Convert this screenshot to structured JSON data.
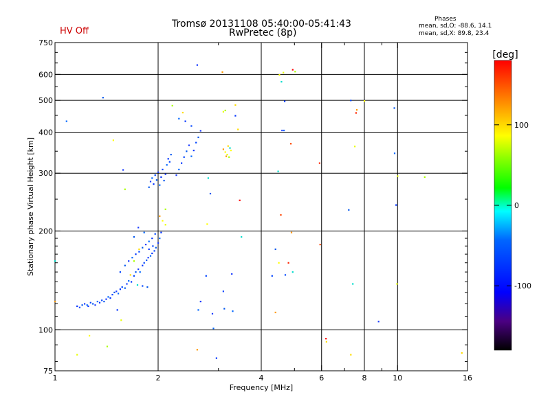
{
  "header": {
    "title_line1": "Tromsø 20131108 05:40:00-05:41:43",
    "title_line2": "RwPretec (8p)",
    "status": "HV Off",
    "status_color": "#cc0000",
    "phases_title": "Phases",
    "phases_line1": "mean, sd,O: -88.6, 14.1",
    "phases_line2": "mean, sd,X:  89.8, 23.4"
  },
  "chart_data": {
    "type": "scatter",
    "xlabel": "Frequency [MHz]",
    "ylabel": "Stationary phase Virtual Height [km]",
    "x_scale": "log",
    "y_scale": "log",
    "xlim": [
      1,
      16
    ],
    "ylim": [
      75,
      750
    ],
    "x_ticks": [
      1,
      2,
      4,
      6,
      8,
      10,
      16
    ],
    "x_tick_labels": [
      "1",
      "2",
      "4",
      "6",
      "8",
      "10",
      "16"
    ],
    "x_minor_ticks": [
      3,
      5,
      7,
      9
    ],
    "y_ticks": [
      75,
      100,
      200,
      300,
      400,
      500,
      600,
      750
    ],
    "y_tick_labels": [
      "75",
      "100",
      "200",
      "300",
      "400",
      "500",
      "600",
      "750"
    ],
    "y_minor_ticks": [
      80,
      90,
      110,
      120,
      130,
      140,
      150,
      160,
      170,
      180,
      190,
      250,
      350,
      450,
      550,
      650,
      700
    ],
    "grid": true,
    "colorbar": {
      "label": "[deg]",
      "range": [
        -180,
        180
      ],
      "ticks": [
        100,
        0,
        -100
      ],
      "tick_labels": [
        "100",
        "0",
        "-100"
      ]
    },
    "series": [
      {
        "points": [
          [
            1.16,
            118
          ],
          [
            1.18,
            117
          ],
          [
            1.2,
            119
          ],
          [
            1.22,
            120
          ],
          [
            1.24,
            119
          ],
          [
            1.25,
            118
          ],
          [
            1.27,
            121
          ],
          [
            1.29,
            120
          ],
          [
            1.31,
            119
          ],
          [
            1.33,
            122
          ],
          [
            1.35,
            121
          ],
          [
            1.37,
            123
          ],
          [
            1.39,
            122
          ],
          [
            1.41,
            124
          ],
          [
            1.43,
            126
          ],
          [
            1.45,
            125
          ],
          [
            1.47,
            128
          ],
          [
            1.49,
            130
          ],
          [
            1.51,
            131
          ],
          [
            1.53,
            129
          ],
          [
            1.55,
            133
          ],
          [
            1.57,
            135
          ],
          [
            1.6,
            134
          ],
          [
            1.62,
            138
          ],
          [
            1.64,
            141
          ],
          [
            1.67,
            140
          ],
          [
            1.7,
            146
          ],
          [
            1.72,
            150
          ],
          [
            1.75,
            153
          ],
          [
            1.77,
            150
          ],
          [
            1.8,
            157
          ],
          [
            1.82,
            160
          ],
          [
            1.85,
            163
          ],
          [
            1.87,
            166
          ],
          [
            1.9,
            168
          ],
          [
            1.92,
            171
          ],
          [
            1.95,
            174
          ],
          [
            1.97,
            178
          ],
          [
            2.0,
            184
          ],
          [
            2.02,
            190
          ],
          [
            2.04,
            198
          ],
          [
            1.55,
            150
          ],
          [
            1.6,
            157
          ],
          [
            1.64,
            162
          ],
          [
            1.68,
            166
          ],
          [
            1.72,
            170
          ],
          [
            1.76,
            173
          ],
          [
            1.8,
            178
          ],
          [
            1.84,
            182
          ],
          [
            1.88,
            186
          ],
          [
            1.92,
            190
          ],
          [
            1.96,
            196
          ],
          [
            1.7,
            192
          ],
          [
            1.75,
            205
          ],
          [
            1.82,
            198
          ],
          [
            1.88,
            176
          ],
          [
            1.93,
            180
          ],
          [
            1.88,
            272
          ],
          [
            1.9,
            283
          ],
          [
            1.92,
            290
          ],
          [
            1.94,
            278
          ],
          [
            1.96,
            296
          ],
          [
            1.98,
            286
          ],
          [
            2.0,
            302
          ],
          [
            2.02,
            276
          ],
          [
            2.04,
            292
          ],
          [
            2.06,
            308
          ],
          [
            2.08,
            285
          ],
          [
            2.1,
            298
          ],
          [
            2.12,
            318
          ],
          [
            2.14,
            332
          ],
          [
            2.16,
            325
          ],
          [
            2.18,
            342
          ],
          [
            2.26,
            296
          ],
          [
            2.3,
            308
          ],
          [
            2.34,
            322
          ],
          [
            2.38,
            336
          ],
          [
            2.42,
            350
          ],
          [
            2.46,
            365
          ],
          [
            2.5,
            338
          ],
          [
            2.54,
            352
          ],
          [
            2.58,
            372
          ],
          [
            2.62,
            386
          ],
          [
            2.66,
            404
          ],
          [
            2.3,
            440
          ],
          [
            2.4,
            432
          ],
          [
            2.5,
            418
          ],
          [
            1.38,
            510
          ],
          [
            1.58,
            307
          ],
          [
            1.08,
            432
          ],
          [
            1.52,
            115
          ],
          [
            1.8,
            136
          ],
          [
            1.86,
            135
          ],
          [
            2.6,
            641
          ],
          [
            2.62,
            115
          ],
          [
            2.66,
            122
          ],
          [
            2.76,
            146
          ],
          [
            2.84,
            260
          ],
          [
            2.88,
            112
          ],
          [
            2.9,
            101
          ],
          [
            2.96,
            82
          ],
          [
            3.1,
            131
          ],
          [
            3.12,
            116
          ],
          [
            3.28,
            148
          ],
          [
            3.3,
            114
          ],
          [
            3.36,
            449
          ],
          [
            4.3,
            146
          ],
          [
            4.4,
            176
          ],
          [
            4.6,
            405
          ],
          [
            4.66,
            405
          ],
          [
            4.68,
            497
          ],
          [
            4.7,
            147
          ],
          [
            7.2,
            232
          ],
          [
            8.8,
            106
          ],
          [
            9.8,
            345
          ],
          [
            9.9,
            240
          ],
          [
            7.3,
            500
          ],
          [
            9.78,
            474
          ]
        ]
      },
      {
        "points": [
          [
            1.48,
            378
          ],
          [
            1.56,
            107
          ],
          [
            1.6,
            268
          ],
          [
            1.66,
            147
          ],
          [
            1.74,
            137
          ],
          [
            2.02,
            222
          ],
          [
            2.06,
            215
          ],
          [
            2.1,
            209
          ],
          [
            2.2,
            482
          ],
          [
            2.36,
            459
          ],
          [
            2.8,
            290
          ],
          [
            3.1,
            355
          ],
          [
            3.14,
            348
          ],
          [
            3.18,
            342
          ],
          [
            3.22,
            336
          ],
          [
            3.2,
            363
          ],
          [
            3.24,
            358
          ],
          [
            3.16,
            338
          ],
          [
            3.26,
            352
          ],
          [
            3.1,
            462
          ],
          [
            3.14,
            466
          ],
          [
            3.42,
            408
          ],
          [
            3.5,
            192
          ],
          [
            4.4,
            113
          ],
          [
            4.52,
            598
          ],
          [
            4.64,
            608
          ],
          [
            5.02,
            612
          ],
          [
            6.2,
            92
          ],
          [
            7.4,
            138
          ],
          [
            7.6,
            468
          ],
          [
            8.0,
            498
          ],
          [
            10.0,
            294
          ],
          [
            12.0,
            292
          ],
          [
            15.4,
            85
          ],
          [
            1.0,
            162
          ],
          [
            1.0,
            122
          ],
          [
            1.26,
            96
          ],
          [
            1.16,
            84
          ],
          [
            1.42,
            89
          ],
          [
            7.3,
            84
          ],
          [
            4.58,
            570
          ],
          [
            2.6,
            87
          ],
          [
            2.78,
            210
          ],
          [
            7.5,
            362
          ],
          [
            2.1,
            233
          ],
          [
            3.36,
            484
          ],
          [
            4.48,
            304
          ],
          [
            4.9,
            198
          ],
          [
            4.5,
            160
          ],
          [
            9.96,
            138
          ],
          [
            1.7,
            162
          ],
          [
            1.76,
            176
          ],
          [
            4.94,
            150
          ],
          [
            3.08,
            610
          ]
        ]
      },
      {
        "points": [
          [
            4.8,
            160
          ],
          [
            4.88,
            369
          ],
          [
            4.94,
            620
          ],
          [
            5.92,
            322
          ],
          [
            5.94,
            182
          ],
          [
            6.18,
            94
          ],
          [
            7.56,
            458
          ],
          [
            4.56,
            224
          ],
          [
            3.46,
            248
          ]
        ]
      }
    ]
  }
}
